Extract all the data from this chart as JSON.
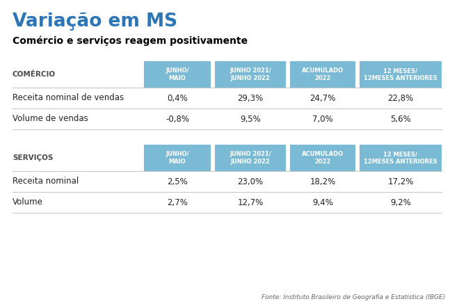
{
  "title": "Variação em MS",
  "subtitle": "Comércio e serviços reagem positivamente",
  "bg_color": "#ffffff",
  "title_color": "#2E75B6",
  "subtitle_color": "#000000",
  "header_bg": "#7BBAD4",
  "header_text": "#ffffff",
  "section_label_color": "#4a4a4a",
  "row_text_color": "#222222",
  "divider_color": "#bbbbbb",
  "footer_text": "Fonte: Instituto Brasileiro de Geografia e Estatística (IBGE)",
  "col_headers": [
    "JUNHO/\nMAIO",
    "JUNHO 2021/\nJUNHO 2022",
    "ACUMULADO\n2022",
    "12 MESES/\n12MESES ANTERIORES"
  ],
  "comercio_label": "COMÉRCIO",
  "comercio_rows": [
    {
      "label": "Receita nominal de vendas",
      "values": [
        "0,4%",
        "29,3%",
        "24,7%",
        "22,8%"
      ]
    },
    {
      "label": "Volume de vendas",
      "values": [
        "-0,8%",
        "9,5%",
        "7,0%",
        "5,6%"
      ]
    }
  ],
  "servicos_label": "SERVIÇOS",
  "servicos_rows": [
    {
      "label": "Receita nominal",
      "values": [
        "2,5%",
        "23,0%",
        "18,2%",
        "17,2%"
      ]
    },
    {
      "label": "Volume",
      "values": [
        "2,7%",
        "12,7%",
        "9,4%",
        "9,2%"
      ]
    }
  ]
}
